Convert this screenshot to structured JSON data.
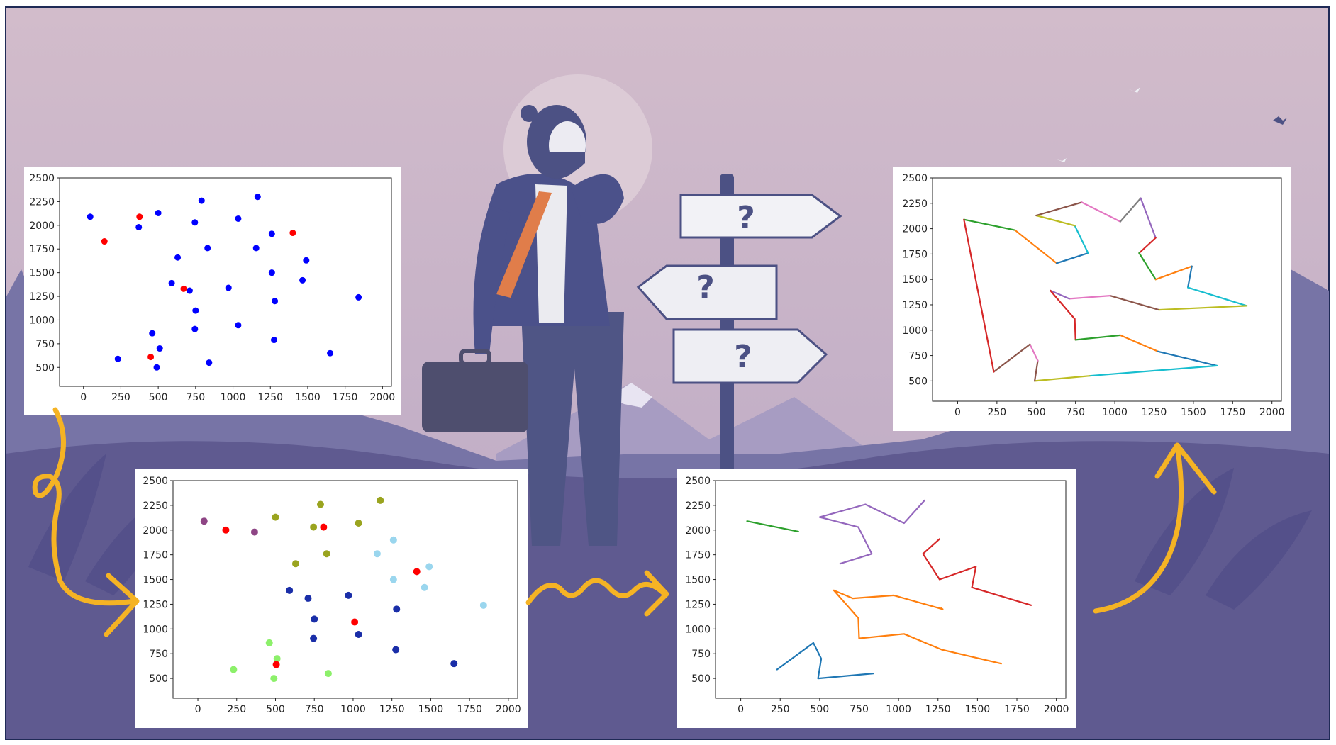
{
  "chart_data": [
    {
      "id": "raw_points",
      "type": "scatter",
      "title": "",
      "xlabel": "",
      "ylabel": "",
      "xlim": [
        -160,
        2060
      ],
      "ylim": [
        300,
        2500
      ],
      "xticks": [
        0,
        250,
        500,
        750,
        1000,
        1250,
        1500,
        1750,
        2000
      ],
      "yticks": [
        500,
        750,
        1000,
        1250,
        1500,
        1750,
        2000,
        2250,
        2500
      ],
      "series": [
        {
          "color": "#0000ff",
          "points": [
            [
              45,
              2090
            ],
            [
              370,
              1980
            ],
            [
              500,
              2130
            ],
            [
              790,
              2260
            ],
            [
              745,
              2030
            ],
            [
              1165,
              2300
            ],
            [
              1035,
              2070
            ],
            [
              1260,
              1910
            ],
            [
              830,
              1760
            ],
            [
              630,
              1660
            ],
            [
              590,
              1390
            ],
            [
              710,
              1310
            ],
            [
              750,
              1100
            ],
            [
              745,
              905
            ],
            [
              970,
              1340
            ],
            [
              1155,
              1760
            ],
            [
              1260,
              1500
            ],
            [
              1490,
              1630
            ],
            [
              1465,
              1420
            ],
            [
              1280,
              1200
            ],
            [
              1840,
              1240
            ],
            [
              1035,
              945
            ],
            [
              1275,
              790
            ],
            [
              1650,
              650
            ],
            [
              460,
              860
            ],
            [
              510,
              700
            ],
            [
              230,
              590
            ],
            [
              490,
              500
            ],
            [
              840,
              550
            ]
          ]
        },
        {
          "color": "#ff0000",
          "points": [
            [
              140,
              1830
            ],
            [
              375,
              2090
            ],
            [
              1400,
              1920
            ],
            [
              670,
              1330
            ],
            [
              450,
              610
            ]
          ]
        }
      ]
    },
    {
      "id": "clustered_points",
      "type": "scatter",
      "title": "",
      "xlabel": "",
      "ylabel": "",
      "xlim": [
        -160,
        2060
      ],
      "ylim": [
        300,
        2500
      ],
      "xticks": [
        0,
        250,
        500,
        750,
        1000,
        1250,
        1500,
        1750,
        2000
      ],
      "yticks": [
        500,
        750,
        1000,
        1250,
        1500,
        1750,
        2000,
        2250,
        2500
      ],
      "series": [
        {
          "color": "#8e4585",
          "points": [
            [
              40,
              2090
            ],
            [
              365,
              1980
            ]
          ]
        },
        {
          "color": "#9aa41f",
          "points": [
            [
              500,
              2130
            ],
            [
              790,
              2260
            ],
            [
              745,
              2030
            ],
            [
              1175,
              2300
            ],
            [
              1035,
              2070
            ],
            [
              830,
              1760
            ],
            [
              630,
              1660
            ]
          ]
        },
        {
          "color": "#9ad6ee",
          "points": [
            [
              1260,
              1900
            ],
            [
              1155,
              1760
            ],
            [
              1490,
              1630
            ],
            [
              1260,
              1500
            ],
            [
              1460,
              1420
            ],
            [
              1840,
              1240
            ]
          ]
        },
        {
          "color": "#1a2ea8",
          "points": [
            [
              590,
              1390
            ],
            [
              710,
              1310
            ],
            [
              970,
              1340
            ],
            [
              1280,
              1200
            ],
            [
              750,
              1100
            ],
            [
              745,
              905
            ],
            [
              1035,
              945
            ],
            [
              1275,
              790
            ],
            [
              1650,
              650
            ]
          ]
        },
        {
          "color": "#8cf06a",
          "points": [
            [
              460,
              860
            ],
            [
              510,
              700
            ],
            [
              230,
              590
            ],
            [
              490,
              500
            ],
            [
              840,
              550
            ]
          ]
        },
        {
          "color": "#ff0000",
          "points": [
            [
              180,
              2000
            ],
            [
              810,
              2030
            ],
            [
              1410,
              1580
            ],
            [
              1010,
              1070
            ],
            [
              505,
              640
            ]
          ]
        }
      ]
    },
    {
      "id": "cluster_routes",
      "type": "line",
      "title": "",
      "xlabel": "",
      "ylabel": "",
      "xlim": [
        -160,
        2060
      ],
      "ylim": [
        300,
        2500
      ],
      "xticks": [
        0,
        250,
        500,
        750,
        1000,
        1250,
        1500,
        1750,
        2000
      ],
      "yticks": [
        500,
        750,
        1000,
        1250,
        1500,
        1750,
        2000,
        2250,
        2500
      ],
      "series": [
        {
          "color": "#2ca02c",
          "points": [
            [
              40,
              2090
            ],
            [
              365,
              1985
            ]
          ]
        },
        {
          "color": "#9467bd",
          "points": [
            [
              630,
              1660
            ],
            [
              830,
              1760
            ],
            [
              745,
              2030
            ],
            [
              500,
              2130
            ],
            [
              790,
              2260
            ],
            [
              1035,
              2070
            ],
            [
              1165,
              2300
            ]
          ]
        },
        {
          "color": "#d62728",
          "points": [
            [
              1260,
              1910
            ],
            [
              1155,
              1760
            ],
            [
              1260,
              1500
            ],
            [
              1490,
              1630
            ],
            [
              1465,
              1420
            ],
            [
              1840,
              1240
            ]
          ]
        },
        {
          "color": "#ff7f0e",
          "points": [
            [
              590,
              1390
            ],
            [
              710,
              1310
            ],
            [
              970,
              1340
            ],
            [
              1280,
              1200
            ],
            [
              1270,
              1210
            ]
          ]
        },
        {
          "color": "#ff7f0e",
          "points": [
            [
              590,
              1390
            ],
            [
              745,
              1110
            ],
            [
              750,
              905
            ],
            [
              1035,
              950
            ],
            [
              1275,
              790
            ],
            [
              1650,
              650
            ]
          ]
        },
        {
          "color": "#1f77b4",
          "points": [
            [
              230,
              590
            ],
            [
              460,
              860
            ],
            [
              510,
              700
            ],
            [
              490,
              500
            ],
            [
              840,
              550
            ]
          ]
        }
      ]
    },
    {
      "id": "merged_route",
      "type": "line",
      "title": "",
      "xlabel": "",
      "ylabel": "",
      "xlim": [
        -160,
        2060
      ],
      "ylim": [
        300,
        2500
      ],
      "xticks": [
        0,
        250,
        500,
        750,
        1000,
        1250,
        1500,
        1750,
        2000
      ],
      "yticks": [
        500,
        750,
        1000,
        1250,
        1500,
        1750,
        2000,
        2250,
        2500
      ],
      "series": [
        {
          "color": "#2ca02c",
          "points": [
            [
              40,
              2090
            ],
            [
              365,
              1985
            ]
          ]
        },
        {
          "color": "#ff7f0e",
          "points": [
            [
              365,
              1985
            ],
            [
              630,
              1660
            ]
          ]
        },
        {
          "color": "#1f77b4",
          "points": [
            [
              630,
              1660
            ],
            [
              830,
              1760
            ]
          ]
        },
        {
          "color": "#17becf",
          "points": [
            [
              830,
              1760
            ],
            [
              745,
              2030
            ]
          ]
        },
        {
          "color": "#bcbd22",
          "points": [
            [
              745,
              2030
            ],
            [
              500,
              2130
            ]
          ]
        },
        {
          "color": "#8c564b",
          "points": [
            [
              500,
              2130
            ],
            [
              790,
              2260
            ]
          ]
        },
        {
          "color": "#e377c2",
          "points": [
            [
              790,
              2260
            ],
            [
              1035,
              2070
            ]
          ]
        },
        {
          "color": "#7f7f7f",
          "points": [
            [
              1035,
              2070
            ],
            [
              1165,
              2300
            ]
          ]
        },
        {
          "color": "#9467bd",
          "points": [
            [
              1165,
              2300
            ],
            [
              1260,
              1910
            ]
          ]
        },
        {
          "color": "#d62728",
          "points": [
            [
              1260,
              1910
            ],
            [
              1155,
              1760
            ]
          ]
        },
        {
          "color": "#2ca02c",
          "points": [
            [
              1155,
              1760
            ],
            [
              1260,
              1500
            ]
          ]
        },
        {
          "color": "#ff7f0e",
          "points": [
            [
              1260,
              1500
            ],
            [
              1490,
              1630
            ]
          ]
        },
        {
          "color": "#1f77b4",
          "points": [
            [
              1490,
              1630
            ],
            [
              1465,
              1420
            ]
          ]
        },
        {
          "color": "#17becf",
          "points": [
            [
              1465,
              1420
            ],
            [
              1840,
              1240
            ]
          ]
        },
        {
          "color": "#bcbd22",
          "points": [
            [
              1840,
              1240
            ],
            [
              1280,
              1200
            ]
          ]
        },
        {
          "color": "#8c564b",
          "points": [
            [
              1280,
              1200
            ],
            [
              970,
              1340
            ]
          ]
        },
        {
          "color": "#e377c2",
          "points": [
            [
              970,
              1340
            ],
            [
              710,
              1310
            ]
          ]
        },
        {
          "color": "#9467bd",
          "points": [
            [
              710,
              1310
            ],
            [
              590,
              1390
            ]
          ]
        },
        {
          "color": "#d62728",
          "points": [
            [
              590,
              1390
            ],
            [
              745,
              1110
            ]
          ]
        },
        {
          "color": "#d62728",
          "points": [
            [
              745,
              1110
            ],
            [
              750,
              905
            ]
          ]
        },
        {
          "color": "#2ca02c",
          "points": [
            [
              750,
              905
            ],
            [
              1035,
              950
            ]
          ]
        },
        {
          "color": "#ff7f0e",
          "points": [
            [
              1035,
              950
            ],
            [
              1275,
              790
            ]
          ]
        },
        {
          "color": "#1f77b4",
          "points": [
            [
              1275,
              790
            ],
            [
              1650,
              650
            ]
          ]
        },
        {
          "color": "#17becf",
          "points": [
            [
              1650,
              650
            ],
            [
              840,
              550
            ]
          ]
        },
        {
          "color": "#bcbd22",
          "points": [
            [
              840,
              550
            ],
            [
              490,
              500
            ]
          ]
        },
        {
          "color": "#8c564b",
          "points": [
            [
              490,
              500
            ],
            [
              510,
              700
            ]
          ]
        },
        {
          "color": "#e377c2",
          "points": [
            [
              510,
              700
            ],
            [
              460,
              860
            ]
          ]
        },
        {
          "color": "#8c564b",
          "points": [
            [
              460,
              860
            ],
            [
              230,
              590
            ]
          ]
        },
        {
          "color": "#d62728",
          "points": [
            [
              230,
              590
            ],
            [
              40,
              2090
            ]
          ]
        }
      ]
    }
  ],
  "colors": {
    "arrow": "#f5b324",
    "sky_top": "#d2bccb",
    "sky_bottom": "#b7a4c2",
    "ground": "#5f5a90",
    "frame": "#1f2a56"
  },
  "illustration": {
    "figure": "thinking-businessman",
    "signpost_arrows": [
      "?",
      "?",
      "?"
    ]
  }
}
